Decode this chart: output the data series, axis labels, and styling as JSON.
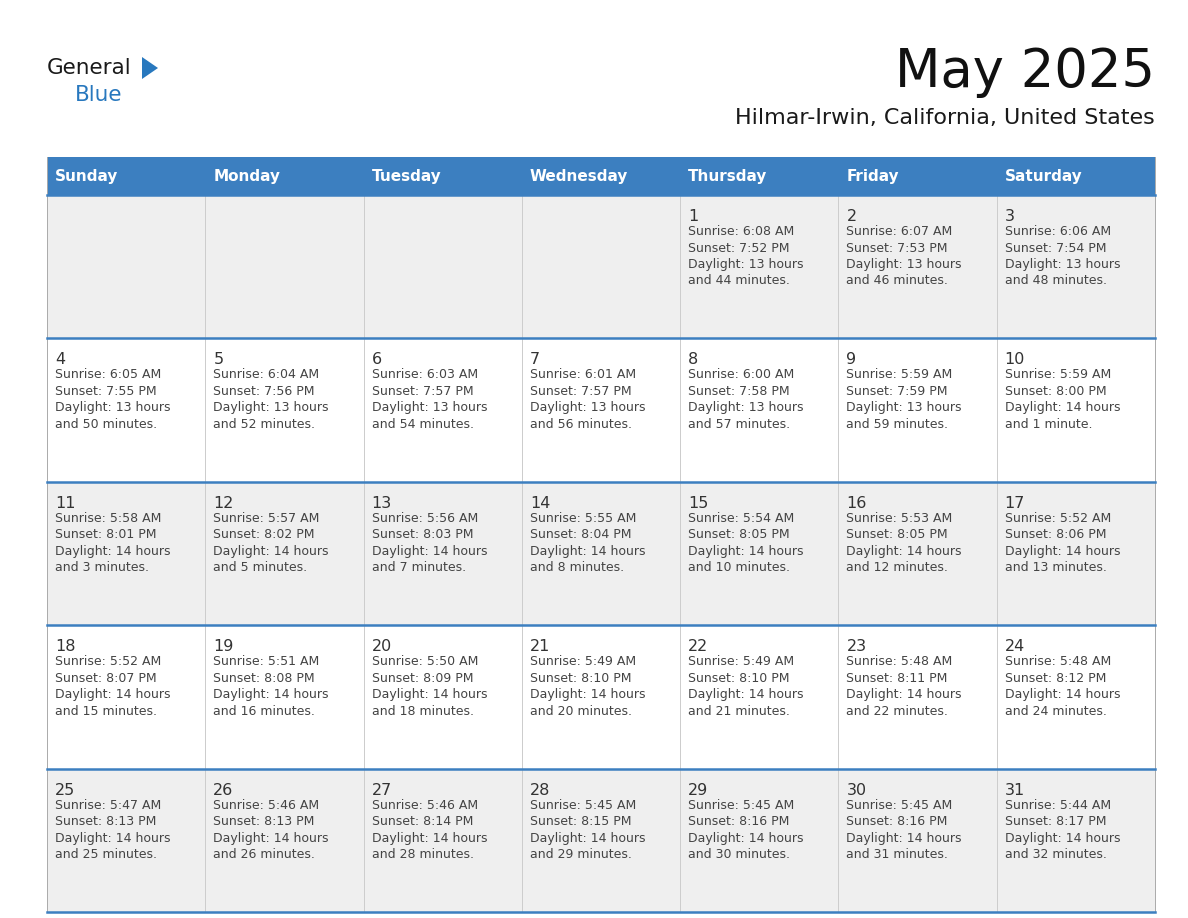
{
  "title": "May 2025",
  "subtitle": "Hilmar-Irwin, California, United States",
  "header_bg": "#3C7FC0",
  "header_text": "#FFFFFF",
  "row_bg_light": "#EFEFEF",
  "row_bg_white": "#FFFFFF",
  "separator_color": "#3C7FC0",
  "text_color": "#444444",
  "day_number_color": "#333333",
  "logo_black": "#1A1A1A",
  "logo_blue": "#2878BE",
  "day_names": [
    "Sunday",
    "Monday",
    "Tuesday",
    "Wednesday",
    "Thursday",
    "Friday",
    "Saturday"
  ],
  "weeks": [
    [
      {
        "day": "",
        "lines": []
      },
      {
        "day": "",
        "lines": []
      },
      {
        "day": "",
        "lines": []
      },
      {
        "day": "",
        "lines": []
      },
      {
        "day": "1",
        "lines": [
          "Sunrise: 6:08 AM",
          "Sunset: 7:52 PM",
          "Daylight: 13 hours",
          "and 44 minutes."
        ]
      },
      {
        "day": "2",
        "lines": [
          "Sunrise: 6:07 AM",
          "Sunset: 7:53 PM",
          "Daylight: 13 hours",
          "and 46 minutes."
        ]
      },
      {
        "day": "3",
        "lines": [
          "Sunrise: 6:06 AM",
          "Sunset: 7:54 PM",
          "Daylight: 13 hours",
          "and 48 minutes."
        ]
      }
    ],
    [
      {
        "day": "4",
        "lines": [
          "Sunrise: 6:05 AM",
          "Sunset: 7:55 PM",
          "Daylight: 13 hours",
          "and 50 minutes."
        ]
      },
      {
        "day": "5",
        "lines": [
          "Sunrise: 6:04 AM",
          "Sunset: 7:56 PM",
          "Daylight: 13 hours",
          "and 52 minutes."
        ]
      },
      {
        "day": "6",
        "lines": [
          "Sunrise: 6:03 AM",
          "Sunset: 7:57 PM",
          "Daylight: 13 hours",
          "and 54 minutes."
        ]
      },
      {
        "day": "7",
        "lines": [
          "Sunrise: 6:01 AM",
          "Sunset: 7:57 PM",
          "Daylight: 13 hours",
          "and 56 minutes."
        ]
      },
      {
        "day": "8",
        "lines": [
          "Sunrise: 6:00 AM",
          "Sunset: 7:58 PM",
          "Daylight: 13 hours",
          "and 57 minutes."
        ]
      },
      {
        "day": "9",
        "lines": [
          "Sunrise: 5:59 AM",
          "Sunset: 7:59 PM",
          "Daylight: 13 hours",
          "and 59 minutes."
        ]
      },
      {
        "day": "10",
        "lines": [
          "Sunrise: 5:59 AM",
          "Sunset: 8:00 PM",
          "Daylight: 14 hours",
          "and 1 minute."
        ]
      }
    ],
    [
      {
        "day": "11",
        "lines": [
          "Sunrise: 5:58 AM",
          "Sunset: 8:01 PM",
          "Daylight: 14 hours",
          "and 3 minutes."
        ]
      },
      {
        "day": "12",
        "lines": [
          "Sunrise: 5:57 AM",
          "Sunset: 8:02 PM",
          "Daylight: 14 hours",
          "and 5 minutes."
        ]
      },
      {
        "day": "13",
        "lines": [
          "Sunrise: 5:56 AM",
          "Sunset: 8:03 PM",
          "Daylight: 14 hours",
          "and 7 minutes."
        ]
      },
      {
        "day": "14",
        "lines": [
          "Sunrise: 5:55 AM",
          "Sunset: 8:04 PM",
          "Daylight: 14 hours",
          "and 8 minutes."
        ]
      },
      {
        "day": "15",
        "lines": [
          "Sunrise: 5:54 AM",
          "Sunset: 8:05 PM",
          "Daylight: 14 hours",
          "and 10 minutes."
        ]
      },
      {
        "day": "16",
        "lines": [
          "Sunrise: 5:53 AM",
          "Sunset: 8:05 PM",
          "Daylight: 14 hours",
          "and 12 minutes."
        ]
      },
      {
        "day": "17",
        "lines": [
          "Sunrise: 5:52 AM",
          "Sunset: 8:06 PM",
          "Daylight: 14 hours",
          "and 13 minutes."
        ]
      }
    ],
    [
      {
        "day": "18",
        "lines": [
          "Sunrise: 5:52 AM",
          "Sunset: 8:07 PM",
          "Daylight: 14 hours",
          "and 15 minutes."
        ]
      },
      {
        "day": "19",
        "lines": [
          "Sunrise: 5:51 AM",
          "Sunset: 8:08 PM",
          "Daylight: 14 hours",
          "and 16 minutes."
        ]
      },
      {
        "day": "20",
        "lines": [
          "Sunrise: 5:50 AM",
          "Sunset: 8:09 PM",
          "Daylight: 14 hours",
          "and 18 minutes."
        ]
      },
      {
        "day": "21",
        "lines": [
          "Sunrise: 5:49 AM",
          "Sunset: 8:10 PM",
          "Daylight: 14 hours",
          "and 20 minutes."
        ]
      },
      {
        "day": "22",
        "lines": [
          "Sunrise: 5:49 AM",
          "Sunset: 8:10 PM",
          "Daylight: 14 hours",
          "and 21 minutes."
        ]
      },
      {
        "day": "23",
        "lines": [
          "Sunrise: 5:48 AM",
          "Sunset: 8:11 PM",
          "Daylight: 14 hours",
          "and 22 minutes."
        ]
      },
      {
        "day": "24",
        "lines": [
          "Sunrise: 5:48 AM",
          "Sunset: 8:12 PM",
          "Daylight: 14 hours",
          "and 24 minutes."
        ]
      }
    ],
    [
      {
        "day": "25",
        "lines": [
          "Sunrise: 5:47 AM",
          "Sunset: 8:13 PM",
          "Daylight: 14 hours",
          "and 25 minutes."
        ]
      },
      {
        "day": "26",
        "lines": [
          "Sunrise: 5:46 AM",
          "Sunset: 8:13 PM",
          "Daylight: 14 hours",
          "and 26 minutes."
        ]
      },
      {
        "day": "27",
        "lines": [
          "Sunrise: 5:46 AM",
          "Sunset: 8:14 PM",
          "Daylight: 14 hours",
          "and 28 minutes."
        ]
      },
      {
        "day": "28",
        "lines": [
          "Sunrise: 5:45 AM",
          "Sunset: 8:15 PM",
          "Daylight: 14 hours",
          "and 29 minutes."
        ]
      },
      {
        "day": "29",
        "lines": [
          "Sunrise: 5:45 AM",
          "Sunset: 8:16 PM",
          "Daylight: 14 hours",
          "and 30 minutes."
        ]
      },
      {
        "day": "30",
        "lines": [
          "Sunrise: 5:45 AM",
          "Sunset: 8:16 PM",
          "Daylight: 14 hours",
          "and 31 minutes."
        ]
      },
      {
        "day": "31",
        "lines": [
          "Sunrise: 5:44 AM",
          "Sunset: 8:17 PM",
          "Daylight: 14 hours",
          "and 32 minutes."
        ]
      }
    ]
  ]
}
